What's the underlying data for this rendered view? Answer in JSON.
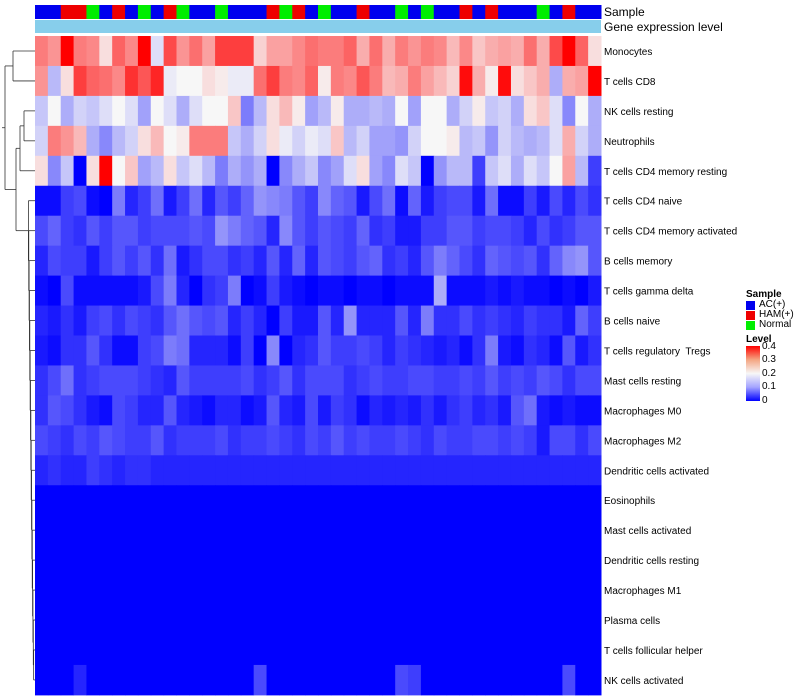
{
  "chart_data": {
    "type": "heatmap",
    "annotation_tracks": [
      "Sample",
      "Gene expression level"
    ],
    "rows": [
      "Monocytes",
      "T cells CD8",
      "NK cells resting",
      "Neutrophils",
      "T cells CD4 memory resting",
      "T cells CD4 naive",
      "T cells CD4 memory activated",
      "B cells memory",
      "T cells gamma delta",
      "B cells naive",
      "T cells regulatory  Tregs",
      "Mast cells resting",
      "Macrophages M0",
      "Macrophages M2",
      "Dendritic cells activated",
      "Eosinophils",
      "Mast cells activated",
      "Dendritic cells resting",
      "Macrophages M1",
      "Plasma cells",
      "T cells follicular helper",
      "NK cells activated"
    ],
    "sample_groups": [
      "AC(+)",
      "HAM(+)",
      "Normal"
    ],
    "sample_colors": {
      "AC(+)": "#0000ee",
      "HAM(+)": "#ee0000",
      "Normal": "#00ee00"
    },
    "sample_annotation": [
      "AC(+)",
      "AC(+)",
      "HAM(+)",
      "HAM(+)",
      "Normal",
      "AC(+)",
      "HAM(+)",
      "AC(+)",
      "Normal",
      "AC(+)",
      "HAM(+)",
      "Normal",
      "AC(+)",
      "AC(+)",
      "Normal",
      "AC(+)",
      "AC(+)",
      "AC(+)",
      "HAM(+)",
      "Normal",
      "HAM(+)",
      "AC(+)",
      "Normal",
      "AC(+)",
      "AC(+)",
      "HAM(+)",
      "AC(+)",
      "AC(+)",
      "Normal",
      "AC(+)",
      "Normal",
      "AC(+)",
      "AC(+)",
      "HAM(+)",
      "AC(+)",
      "HAM(+)",
      "AC(+)",
      "AC(+)",
      "AC(+)",
      "Normal",
      "AC(+)",
      "HAM(+)",
      "AC(+)",
      "AC(+)"
    ],
    "legend_title_sample": "Sample",
    "legend_title_level": "Level",
    "level_ticks": [
      0.4,
      0.3,
      0.2,
      0.1,
      0
    ],
    "level_range": [
      0,
      0.4
    ],
    "level_colors": [
      "#0000ff",
      "#f7f7f7",
      "#ff0000"
    ],
    "values": [
      [
        0.3,
        0.28,
        0.4,
        0.3,
        0.29,
        0.22,
        0.32,
        0.29,
        0.4,
        0.18,
        0.34,
        0.28,
        0.31,
        0.27,
        0.35,
        0.35,
        0.35,
        0.23,
        0.27,
        0.27,
        0.29,
        0.31,
        0.3,
        0.3,
        0.32,
        0.26,
        0.31,
        0.26,
        0.3,
        0.28,
        0.3,
        0.29,
        0.25,
        0.29,
        0.24,
        0.26,
        0.27,
        0.26,
        0.31,
        0.26,
        0.34,
        0.4,
        0.32,
        0.22
      ],
      [
        0.28,
        0.15,
        0.22,
        0.35,
        0.32,
        0.31,
        0.29,
        0.36,
        0.33,
        0.37,
        0.19,
        0.2,
        0.2,
        0.22,
        0.21,
        0.19,
        0.19,
        0.31,
        0.35,
        0.3,
        0.29,
        0.32,
        0.21,
        0.3,
        0.29,
        0.33,
        0.3,
        0.25,
        0.26,
        0.3,
        0.27,
        0.25,
        0.23,
        0.39,
        0.26,
        0.21,
        0.39,
        0.22,
        0.24,
        0.26,
        0.14,
        0.26,
        0.27,
        0.4
      ],
      [
        0.16,
        0.2,
        0.14,
        0.17,
        0.16,
        0.18,
        0.2,
        0.18,
        0.13,
        0.2,
        0.18,
        0.14,
        0.18,
        0.2,
        0.2,
        0.24,
        0.1,
        0.15,
        0.22,
        0.25,
        0.21,
        0.13,
        0.15,
        0.21,
        0.14,
        0.14,
        0.15,
        0.14,
        0.2,
        0.13,
        0.2,
        0.2,
        0.14,
        0.17,
        0.21,
        0.16,
        0.17,
        0.14,
        0.22,
        0.24,
        0.18,
        0.11,
        0.2,
        0.14
      ],
      [
        0.17,
        0.3,
        0.28,
        0.25,
        0.14,
        0.11,
        0.15,
        0.17,
        0.22,
        0.25,
        0.2,
        0.21,
        0.3,
        0.3,
        0.3,
        0.16,
        0.14,
        0.17,
        0.22,
        0.19,
        0.17,
        0.19,
        0.18,
        0.24,
        0.15,
        0.17,
        0.13,
        0.13,
        0.12,
        0.17,
        0.2,
        0.2,
        0.21,
        0.15,
        0.16,
        0.12,
        0.17,
        0.15,
        0.14,
        0.15,
        0.18,
        0.26,
        0.17,
        0.14
      ],
      [
        0.22,
        0.11,
        0.16,
        0.0,
        0.22,
        0.4,
        0.2,
        0.24,
        0.13,
        0.15,
        0.22,
        0.16,
        0.18,
        0.15,
        0.1,
        0.14,
        0.12,
        0.14,
        0.0,
        0.11,
        0.14,
        0.16,
        0.11,
        0.13,
        0.18,
        0.22,
        0.13,
        0.11,
        0.18,
        0.16,
        0.0,
        0.12,
        0.15,
        0.15,
        0.05,
        0.16,
        0.18,
        0.14,
        0.18,
        0.16,
        0.2,
        0.27,
        0.15,
        0.05
      ],
      [
        0.01,
        0.01,
        0.05,
        0.06,
        0.01,
        0.0,
        0.1,
        0.03,
        0.05,
        0.09,
        0.02,
        0.05,
        0.09,
        0.03,
        0.07,
        0.05,
        0.08,
        0.12,
        0.11,
        0.1,
        0.07,
        0.05,
        0.11,
        0.08,
        0.07,
        0.02,
        0.06,
        0.09,
        0.01,
        0.08,
        0.02,
        0.05,
        0.06,
        0.06,
        0.02,
        0.09,
        0.01,
        0.01,
        0.05,
        0.02,
        0.06,
        0.03,
        0.06,
        0.04
      ],
      [
        0.06,
        0.08,
        0.05,
        0.04,
        0.07,
        0.05,
        0.07,
        0.07,
        0.05,
        0.06,
        0.06,
        0.06,
        0.07,
        0.06,
        0.12,
        0.1,
        0.08,
        0.07,
        0.03,
        0.11,
        0.07,
        0.05,
        0.07,
        0.06,
        0.05,
        0.08,
        0.04,
        0.05,
        0.02,
        0.02,
        0.05,
        0.05,
        0.07,
        0.07,
        0.05,
        0.06,
        0.06,
        0.05,
        0.03,
        0.06,
        0.04,
        0.05,
        0.07,
        0.07
      ],
      [
        0.03,
        0.06,
        0.05,
        0.05,
        0.02,
        0.05,
        0.07,
        0.05,
        0.07,
        0.04,
        0.09,
        0.02,
        0.04,
        0.06,
        0.06,
        0.04,
        0.05,
        0.03,
        0.07,
        0.03,
        0.08,
        0.03,
        0.07,
        0.06,
        0.05,
        0.07,
        0.08,
        0.04,
        0.05,
        0.03,
        0.07,
        0.1,
        0.08,
        0.06,
        0.04,
        0.08,
        0.07,
        0.06,
        0.07,
        0.04,
        0.08,
        0.11,
        0.12,
        0.07
      ],
      [
        0.01,
        0.0,
        0.06,
        0.01,
        0.01,
        0.01,
        0.01,
        0.01,
        0.02,
        0.06,
        0.1,
        0.03,
        0.0,
        0.04,
        0.05,
        0.1,
        0.0,
        0.01,
        0.05,
        0.02,
        0.01,
        0.0,
        0.01,
        0.01,
        0.0,
        0.01,
        0.01,
        0.0,
        0.01,
        0.01,
        0.01,
        0.14,
        0.01,
        0.01,
        0.01,
        0.02,
        0.01,
        0.02,
        0.01,
        0.01,
        0.0,
        0.01,
        0.0,
        0.02
      ],
      [
        0.03,
        0.02,
        0.04,
        0.02,
        0.05,
        0.06,
        0.04,
        0.06,
        0.05,
        0.04,
        0.07,
        0.09,
        0.07,
        0.06,
        0.07,
        0.03,
        0.05,
        0.03,
        0.0,
        0.05,
        0.02,
        0.02,
        0.07,
        0.03,
        0.12,
        0.03,
        0.03,
        0.03,
        0.07,
        0.03,
        0.1,
        0.04,
        0.04,
        0.06,
        0.04,
        0.05,
        0.04,
        0.03,
        0.05,
        0.04,
        0.04,
        0.02,
        0.08,
        0.05
      ],
      [
        0.02,
        0.01,
        0.04,
        0.04,
        0.07,
        0.04,
        0.01,
        0.01,
        0.05,
        0.06,
        0.1,
        0.09,
        0.03,
        0.03,
        0.03,
        0.01,
        0.05,
        0.0,
        0.11,
        0.0,
        0.03,
        0.04,
        0.07,
        0.05,
        0.05,
        0.06,
        0.05,
        0.03,
        0.05,
        0.04,
        0.03,
        0.02,
        0.03,
        0.01,
        0.04,
        0.1,
        0.02,
        0.01,
        0.04,
        0.03,
        0.01,
        0.07,
        0.02,
        0.04
      ],
      [
        0.04,
        0.06,
        0.09,
        0.04,
        0.05,
        0.06,
        0.06,
        0.06,
        0.05,
        0.04,
        0.03,
        0.07,
        0.05,
        0.05,
        0.05,
        0.05,
        0.06,
        0.04,
        0.05,
        0.07,
        0.04,
        0.06,
        0.06,
        0.06,
        0.04,
        0.05,
        0.06,
        0.05,
        0.05,
        0.06,
        0.06,
        0.05,
        0.05,
        0.06,
        0.05,
        0.07,
        0.05,
        0.06,
        0.05,
        0.07,
        0.06,
        0.04,
        0.06,
        0.06
      ],
      [
        0.04,
        0.07,
        0.06,
        0.04,
        0.02,
        0.01,
        0.06,
        0.05,
        0.03,
        0.03,
        0.07,
        0.03,
        0.02,
        0.01,
        0.03,
        0.03,
        0.01,
        0.02,
        0.07,
        0.03,
        0.02,
        0.06,
        0.02,
        0.05,
        0.04,
        0.01,
        0.03,
        0.02,
        0.03,
        0.02,
        0.04,
        0.02,
        0.04,
        0.05,
        0.03,
        0.04,
        0.02,
        0.07,
        0.09,
        0.02,
        0.01,
        0.02,
        0.01,
        0.01
      ],
      [
        0.06,
        0.05,
        0.04,
        0.06,
        0.05,
        0.07,
        0.06,
        0.05,
        0.05,
        0.07,
        0.04,
        0.05,
        0.05,
        0.05,
        0.06,
        0.04,
        0.05,
        0.05,
        0.06,
        0.05,
        0.04,
        0.06,
        0.05,
        0.07,
        0.05,
        0.06,
        0.05,
        0.05,
        0.06,
        0.05,
        0.04,
        0.06,
        0.05,
        0.05,
        0.06,
        0.06,
        0.05,
        0.06,
        0.05,
        0.02,
        0.06,
        0.06,
        0.04,
        0.06
      ],
      [
        0.03,
        0.04,
        0.03,
        0.03,
        0.05,
        0.04,
        0.03,
        0.04,
        0.04,
        0.03,
        0.03,
        0.03,
        0.03,
        0.03,
        0.03,
        0.03,
        0.03,
        0.03,
        0.03,
        0.03,
        0.03,
        0.03,
        0.03,
        0.03,
        0.03,
        0.03,
        0.03,
        0.03,
        0.03,
        0.03,
        0.03,
        0.03,
        0.03,
        0.03,
        0.03,
        0.03,
        0.03,
        0.03,
        0.03,
        0.03,
        0.03,
        0.03,
        0.03,
        0.03
      ],
      [
        0,
        0,
        0,
        0,
        0,
        0,
        0,
        0,
        0,
        0,
        0,
        0,
        0,
        0,
        0,
        0,
        0,
        0,
        0,
        0,
        0,
        0,
        0,
        0,
        0,
        0,
        0,
        0,
        0,
        0,
        0,
        0,
        0,
        0,
        0,
        0,
        0,
        0,
        0,
        0,
        0,
        0,
        0,
        0
      ],
      [
        0,
        0,
        0,
        0,
        0,
        0,
        0,
        0,
        0,
        0,
        0,
        0,
        0,
        0,
        0,
        0,
        0,
        0,
        0,
        0,
        0,
        0,
        0,
        0,
        0,
        0,
        0,
        0,
        0,
        0,
        0,
        0,
        0,
        0,
        0,
        0,
        0,
        0,
        0,
        0,
        0,
        0,
        0,
        0
      ],
      [
        0,
        0,
        0,
        0,
        0,
        0,
        0,
        0,
        0,
        0,
        0,
        0,
        0,
        0,
        0,
        0,
        0,
        0,
        0,
        0,
        0,
        0,
        0,
        0,
        0,
        0,
        0,
        0,
        0,
        0,
        0,
        0,
        0,
        0,
        0,
        0,
        0,
        0,
        0,
        0,
        0,
        0,
        0,
        0
      ],
      [
        0,
        0,
        0,
        0,
        0,
        0,
        0,
        0,
        0,
        0,
        0,
        0,
        0,
        0,
        0,
        0,
        0,
        0,
        0,
        0,
        0,
        0,
        0,
        0,
        0,
        0,
        0,
        0,
        0,
        0,
        0,
        0,
        0,
        0,
        0,
        0,
        0,
        0,
        0,
        0,
        0,
        0,
        0,
        0
      ],
      [
        0,
        0,
        0,
        0,
        0,
        0,
        0,
        0,
        0,
        0,
        0,
        0,
        0,
        0,
        0,
        0,
        0,
        0,
        0,
        0,
        0,
        0,
        0,
        0,
        0,
        0,
        0,
        0,
        0,
        0,
        0,
        0,
        0,
        0,
        0,
        0,
        0,
        0,
        0,
        0,
        0,
        0,
        0,
        0
      ],
      [
        0,
        0,
        0,
        0,
        0,
        0,
        0,
        0,
        0,
        0,
        0,
        0,
        0,
        0,
        0,
        0,
        0,
        0,
        0,
        0,
        0,
        0,
        0,
        0,
        0,
        0,
        0,
        0,
        0,
        0,
        0,
        0,
        0,
        0,
        0,
        0,
        0,
        0,
        0,
        0,
        0,
        0,
        0,
        0
      ],
      [
        0,
        0,
        0,
        0.03,
        0,
        0,
        0,
        0,
        0,
        0,
        0,
        0,
        0,
        0,
        0,
        0,
        0,
        0.06,
        0,
        0,
        0,
        0,
        0,
        0,
        0,
        0,
        0,
        0,
        0.06,
        0.05,
        0,
        0,
        0,
        0,
        0,
        0,
        0,
        0,
        0,
        0,
        0,
        0.06,
        0,
        0
      ]
    ]
  }
}
